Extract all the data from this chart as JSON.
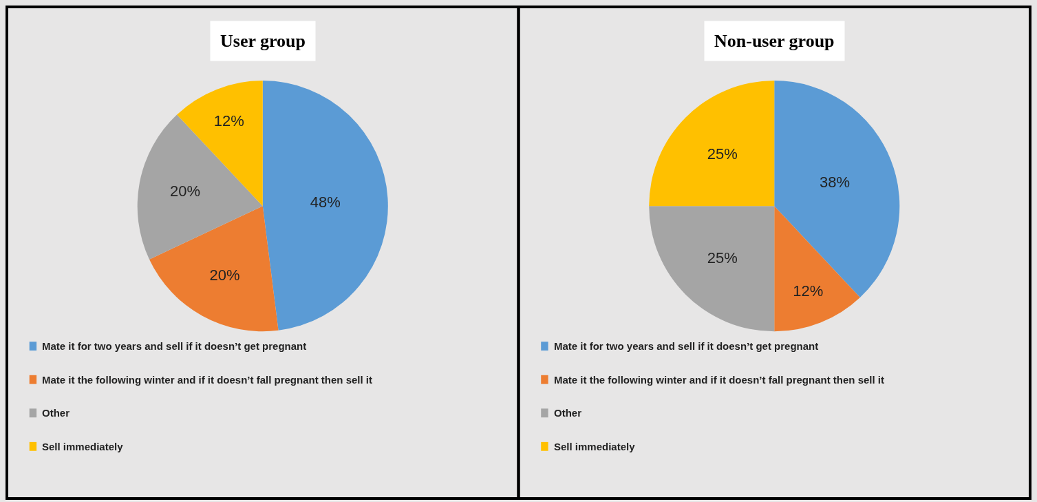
{
  "chart_data": [
    {
      "type": "pie",
      "title": "User group",
      "categories": [
        "Mate it for two years and sell if it doesn’t get pregnant",
        "Mate it the following winter and if it doesn’t fall pregnant then sell it",
        "Other",
        "Sell immediately"
      ],
      "values": [
        48,
        20,
        20,
        12
      ],
      "value_labels": [
        "48%",
        "20%",
        "20%",
        "12%"
      ],
      "colors": [
        "#5b9bd5",
        "#ed7d31",
        "#a5a5a5",
        "#ffc000"
      ],
      "legend": "bottom"
    },
    {
      "type": "pie",
      "title": "Non-user group",
      "categories": [
        "Mate it for two years and sell if it doesn’t get pregnant",
        "Mate it the following winter and if it doesn’t fall pregnant then sell it",
        "Other",
        "Sell immediately"
      ],
      "values": [
        38,
        12,
        25,
        25
      ],
      "value_labels": [
        "38%",
        "12%",
        "25%",
        "25%"
      ],
      "colors": [
        "#5b9bd5",
        "#ed7d31",
        "#a5a5a5",
        "#ffc000"
      ],
      "legend": "bottom"
    }
  ]
}
